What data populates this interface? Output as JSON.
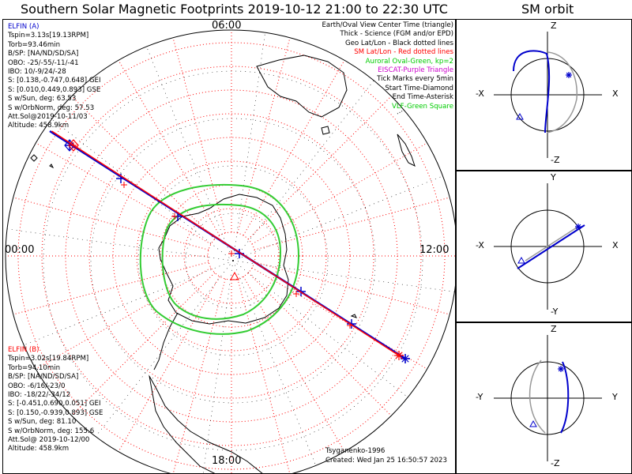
{
  "title": "Southern Solar Magnetic Footprints 2019-10-12 21:00 to 22:30 UTC",
  "orbit_title": "SM orbit",
  "clock": {
    "top": "06:00",
    "left": "00:00",
    "right": "12:00",
    "bottom": "18:00"
  },
  "legend": [
    {
      "text": "Earth/Oval View Center Time (triangle)",
      "color": "#000000"
    },
    {
      "text": "Thick - Science (FGM and/or EPD)",
      "color": "#000000"
    },
    {
      "text": "Geo Lat/Lon - Black dotted lines",
      "color": "#000000"
    },
    {
      "text": "SM Lat/Lon - Red dotted lines",
      "color": "#ff0000"
    },
    {
      "text": "Auroral Oval-Green, kp=2",
      "color": "#00cc00"
    },
    {
      "text": "EISCAT-Purple Triangle",
      "color": "#cc00cc"
    },
    {
      "text": "Tick Marks every 5min",
      "color": "#000000"
    },
    {
      "text": "Start Time-Diamond",
      "color": "#000000"
    },
    {
      "text": "End Time-Asterisk",
      "color": "#000000"
    },
    {
      "text": "VLF-Green Square",
      "color": "#00cc00"
    }
  ],
  "elfin_a": {
    "color": "#0000cc",
    "lines": [
      "ELFIN (A)",
      "Tspin=3.13s[19.13RPM]",
      "Torb=93.46min",
      "B/SP: [NA/ND/SD/SA]",
      "OBO: -25/-55/-11/-41",
      "IBO: 10/-9/24/-28",
      "S: [0.138,-0.747,0.648] GEI",
      "S: [0.010,0.449,0.893] GSE",
      "S w/Sun, deg: 63.53",
      "S w/OrbNorm, deg: 57.53",
      "Att.Sol@2019-10-11/03",
      "Altitude: 458.9km"
    ]
  },
  "elfin_b": {
    "color": "#ff0000",
    "lines": [
      "ELFIN (B)",
      "Tspin=3.02s[19.84RPM]",
      "Torb=94.10min",
      "B/SP: [NA/ND/SD/SA]",
      "OBO: -6/16/-23/0",
      "IBO: -18/22/-34/12",
      "S: [-0.451,0.690,0.051] GEI",
      "S: [0.150,-0.939,0.893] GSE",
      "S w/Sun, deg: 81.10",
      "S w/OrbNorm, deg: 155.6",
      "Att.Sol@ 2019-10-12/00",
      "Altitude: 458.9km"
    ]
  },
  "credit": "Tsyganenko-1996",
  "created": "Created: Wed Jan 25 16:50:57 2023",
  "orbit_panels": [
    {
      "top": "Z",
      "bottom": "-Z",
      "left": "-X",
      "right": "X"
    },
    {
      "top": "Y",
      "bottom": "-Y",
      "left": "-X",
      "right": "X"
    },
    {
      "top": "Z",
      "bottom": "-Z",
      "left": "-Y",
      "right": "Y"
    }
  ],
  "chart_data": {
    "type": "scatter",
    "title": "Southern Solar Magnetic Footprints 2019-10-12 21:00 to 22:30 UTC",
    "projection": "polar, south pole, solar magnetic",
    "clock_labels": [
      "06:00",
      "12:00",
      "18:00",
      "00:00"
    ],
    "series": [
      {
        "name": "ELFIN (A)",
        "color": "#0000cc",
        "points": [
          [
            -205,
            -140
          ],
          [
            -140,
            -98
          ],
          [
            -68,
            -50
          ],
          [
            10,
            -3
          ],
          [
            88,
            45
          ],
          [
            152,
            86
          ],
          [
            220,
            130
          ]
        ]
      },
      {
        "name": "ELFIN (B)",
        "color": "#ff0000",
        "points": [
          [
            -200,
            -140
          ],
          [
            -136,
            -90
          ],
          [
            -72,
            -50
          ],
          [
            0,
            -3
          ],
          [
            82,
            48
          ],
          [
            150,
            88
          ],
          [
            212,
            126
          ]
        ]
      }
    ],
    "auroral_oval_kp": 2,
    "tick_interval_min": 5
  }
}
